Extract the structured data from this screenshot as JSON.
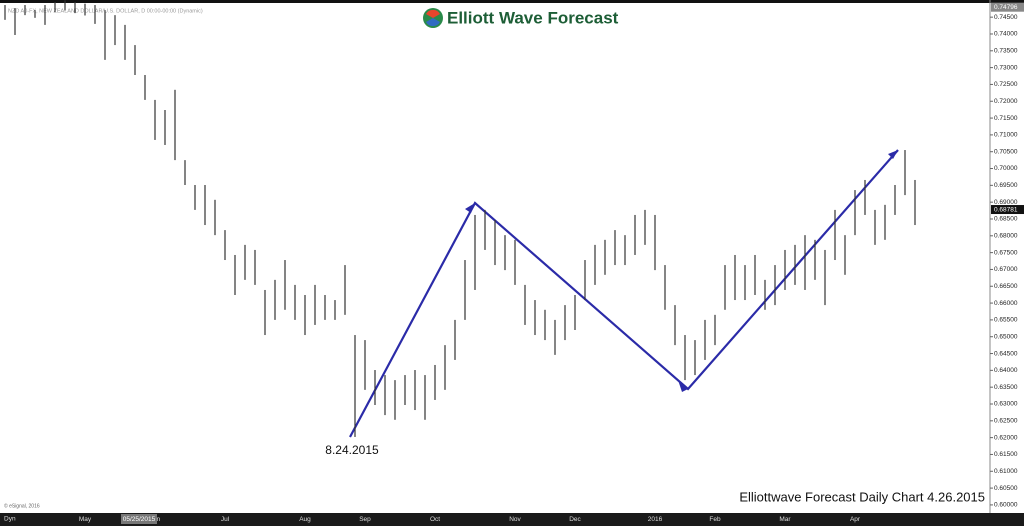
{
  "chart_data": {
    "type": "ohlc",
    "header_text": "NZD A0-FX, NEW ZEALAND DOLLAR/U.S. DOLLAR, D 00:00-00:00 (Dynamic)",
    "logo_text": "Elliott Wave Forecast",
    "annotation": "8.24.2015",
    "footer": "Elliottwave Forecast Daily Chart 4.26.2015",
    "copyright": "© eSignal, 2016",
    "corner_label": "Dyn",
    "cursor_date": "05/25/2015",
    "cursor_price": {
      "value": 0.74796,
      "label": "0.74796"
    },
    "last_price": {
      "value": 0.68781,
      "label": "0.68781"
    },
    "color": "#333333",
    "categories": [
      null,
      null,
      null,
      null,
      null,
      null,
      null,
      null,
      "May",
      null,
      null,
      null,
      null,
      null,
      null,
      "Jun",
      null,
      null,
      null,
      null,
      null,
      null,
      "Jul",
      null,
      null,
      null,
      null,
      null,
      null,
      null,
      "Aug",
      null,
      null,
      null,
      null,
      null,
      "Sep",
      null,
      null,
      null,
      null,
      null,
      null,
      "Oct",
      null,
      null,
      null,
      null,
      null,
      null,
      null,
      "Nov",
      null,
      null,
      null,
      null,
      null,
      "Dec",
      null,
      null,
      null,
      null,
      null,
      null,
      null,
      "2016",
      null,
      null,
      null,
      null,
      null,
      "Feb",
      null,
      null,
      null,
      null,
      null,
      null,
      "Mar",
      null,
      null,
      null,
      null,
      null,
      null,
      "Apr",
      null,
      null,
      null,
      null,
      null,
      null
    ],
    "high": [
      0.7486,
      0.7477,
      0.7486,
      0.7471,
      0.7486,
      0.7495,
      0.75,
      0.7495,
      0.749,
      0.7486,
      0.7471,
      0.7456,
      0.7427,
      0.7367,
      0.7278,
      0.7204,
      0.7174,
      0.7234,
      0.7025,
      0.6951,
      0.6951,
      0.6907,
      0.6817,
      0.6743,
      0.6773,
      0.6758,
      0.6639,
      0.6669,
      0.6728,
      0.6654,
      0.6624,
      0.6654,
      0.6624,
      0.6609,
      0.6713,
      0.6505,
      0.649,
      0.6401,
      0.6386,
      0.6371,
      0.6386,
      0.6401,
      0.6386,
      0.6416,
      0.6475,
      0.655,
      0.6728,
      0.6862,
      0.6877,
      0.6847,
      0.6802,
      0.6788,
      0.6654,
      0.6609,
      0.658,
      0.655,
      0.6594,
      0.6624,
      0.6728,
      0.6773,
      0.6788,
      0.6817,
      0.6802,
      0.6862,
      0.6877,
      0.6862,
      0.6713,
      0.6594,
      0.6505,
      0.649,
      0.655,
      0.6565,
      0.6713,
      0.6743,
      0.6713,
      0.6743,
      0.6669,
      0.6713,
      0.6758,
      0.6773,
      0.6802,
      0.6788,
      0.6758,
      0.6877,
      0.6802,
      0.6936,
      0.6966,
      0.6877,
      0.6892,
      0.6951,
      0.7055,
      0.6966
    ],
    "low": [
      0.7442,
      0.7397,
      0.7456,
      0.7448,
      0.7427,
      0.7465,
      0.747,
      0.7462,
      0.7455,
      0.743,
      0.7323,
      0.7367,
      0.7323,
      0.7278,
      0.7204,
      0.7085,
      0.707,
      0.7025,
      0.6951,
      0.6877,
      0.6832,
      0.6802,
      0.6728,
      0.6624,
      0.6669,
      0.6654,
      0.6505,
      0.655,
      0.658,
      0.655,
      0.6505,
      0.6535,
      0.655,
      0.655,
      0.6565,
      0.6202,
      0.6342,
      0.6297,
      0.6267,
      0.6253,
      0.6297,
      0.6282,
      0.6253,
      0.6312,
      0.6342,
      0.6431,
      0.655,
      0.6639,
      0.6758,
      0.6713,
      0.6698,
      0.6654,
      0.6535,
      0.6505,
      0.649,
      0.6446,
      0.649,
      0.652,
      0.6609,
      0.6654,
      0.6684,
      0.6713,
      0.6713,
      0.6743,
      0.6773,
      0.6698,
      0.658,
      0.6475,
      0.6371,
      0.6386,
      0.6431,
      0.6475,
      0.658,
      0.6609,
      0.6609,
      0.6624,
      0.658,
      0.6594,
      0.6639,
      0.6654,
      0.6639,
      0.6669,
      0.6594,
      0.6728,
      0.6684,
      0.6802,
      0.6862,
      0.6773,
      0.6788,
      0.6862,
      0.6921,
      0.6832
    ],
    "ylim": [
      0.597,
      0.7501
    ],
    "yticks": [
      {
        "value": 0.745,
        "label": "0.74500"
      },
      {
        "value": 0.74,
        "label": "0.74000"
      },
      {
        "value": 0.735,
        "label": "0.73500"
      },
      {
        "value": 0.73,
        "label": "0.73000"
      },
      {
        "value": 0.725,
        "label": "0.72500"
      },
      {
        "value": 0.72,
        "label": "0.72000"
      },
      {
        "value": 0.715,
        "label": "0.71500"
      },
      {
        "value": 0.71,
        "label": "0.71000"
      },
      {
        "value": 0.705,
        "label": "0.70500"
      },
      {
        "value": 0.7,
        "label": "0.70000"
      },
      {
        "value": 0.695,
        "label": "0.69500"
      },
      {
        "value": 0.69,
        "label": "0.69000"
      },
      {
        "value": 0.685,
        "label": "0.68500"
      },
      {
        "value": 0.68,
        "label": "0.68000"
      },
      {
        "value": 0.675,
        "label": "0.67500"
      },
      {
        "value": 0.67,
        "label": "0.67000"
      },
      {
        "value": 0.665,
        "label": "0.66500"
      },
      {
        "value": 0.66,
        "label": "0.66000"
      },
      {
        "value": 0.655,
        "label": "0.65500"
      },
      {
        "value": 0.65,
        "label": "0.65000"
      },
      {
        "value": 0.645,
        "label": "0.64500"
      },
      {
        "value": 0.64,
        "label": "0.64000"
      },
      {
        "value": 0.635,
        "label": "0.63500"
      },
      {
        "value": 0.63,
        "label": "0.63000"
      },
      {
        "value": 0.625,
        "label": "0.62500"
      },
      {
        "value": 0.62,
        "label": "0.62000"
      },
      {
        "value": 0.615,
        "label": "0.61500"
      },
      {
        "value": 0.61,
        "label": "0.61000"
      },
      {
        "value": 0.605,
        "label": "0.60500"
      },
      {
        "value": 0.6,
        "label": "0.60000"
      }
    ],
    "grid": false
  }
}
